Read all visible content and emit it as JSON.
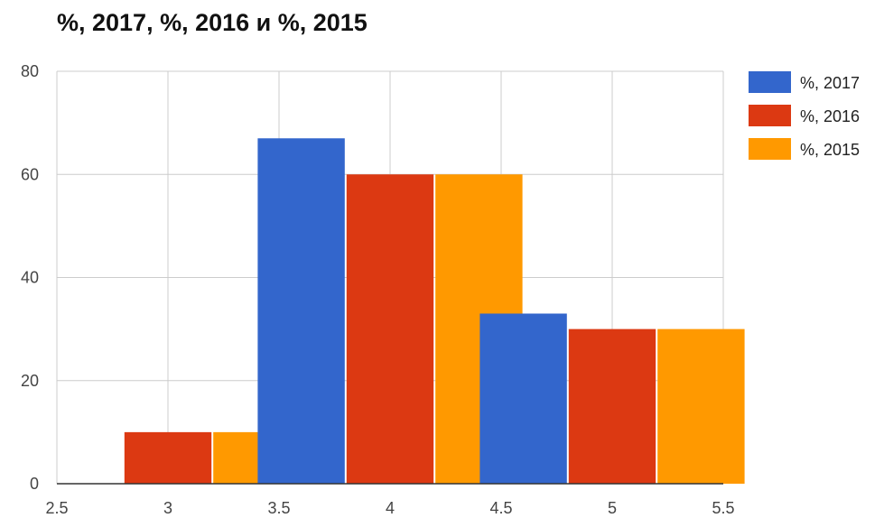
{
  "chart_data": {
    "type": "bar",
    "title": "%, 2017, %, 2016 и %, 2015",
    "xlabel": "",
    "ylabel": "",
    "x": [
      3,
      4,
      5
    ],
    "series": [
      {
        "name": "%, 2017",
        "color": "#3366cc",
        "values": [
          0,
          67,
          33
        ]
      },
      {
        "name": "%, 2016",
        "color": "#dc3912",
        "values": [
          10,
          60,
          30
        ]
      },
      {
        "name": "%, 2015",
        "color": "#ff9900",
        "values": [
          10,
          60,
          30
        ]
      }
    ],
    "xlim": [
      2.5,
      5.5
    ],
    "ylim": [
      0,
      80
    ],
    "x_ticks": [
      "2.5",
      "3",
      "3.5",
      "4",
      "4.5",
      "5",
      "5.5"
    ],
    "y_ticks": [
      "0",
      "20",
      "40",
      "60",
      "80"
    ],
    "grid": true,
    "legend_position": "right"
  }
}
